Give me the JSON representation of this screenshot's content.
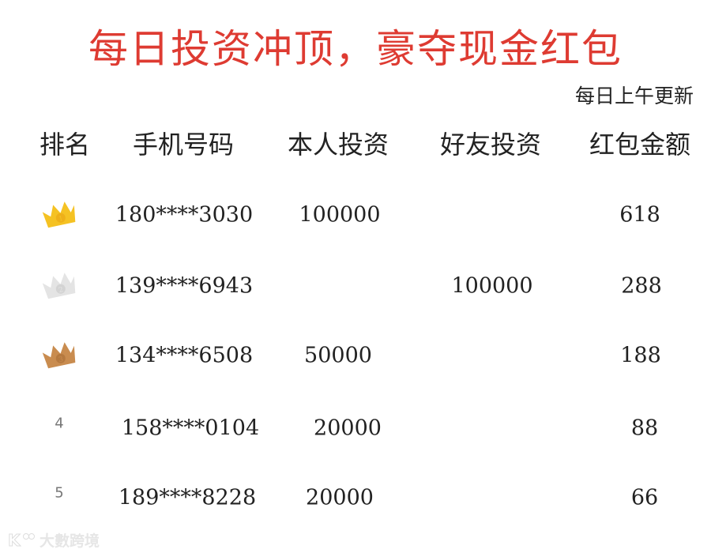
{
  "title": "每日投资冲顶，豪夺现金红包",
  "update_note": "每日上午更新",
  "headers": [
    "排名",
    "手机号码",
    "本人投资",
    "好友投资",
    "红包金额"
  ],
  "colors": {
    "title": "#de3b32",
    "gold": "#f5c223",
    "silver": "#e4e4e4",
    "bronze": "#c98c4f"
  },
  "rows": [
    {
      "rank": "1",
      "icon": "gold-crown-icon",
      "phone": "180****3030",
      "self": "100000",
      "friend": "",
      "amount": "618"
    },
    {
      "rank": "2",
      "icon": "silver-crown-icon",
      "phone": "139****6943",
      "self": "",
      "friend": "100000",
      "amount": "288"
    },
    {
      "rank": "3",
      "icon": "bronze-crown-icon",
      "phone": "134****6508",
      "self": "50000",
      "friend": "",
      "amount": "188"
    },
    {
      "rank": "4",
      "icon": "",
      "phone": "158****0104",
      "self": "20000",
      "friend": "",
      "amount": "88"
    },
    {
      "rank": "5",
      "icon": "",
      "phone": "189****8228",
      "self": "20000",
      "friend": "",
      "amount": "66"
    }
  ],
  "watermark": "大數跨境"
}
